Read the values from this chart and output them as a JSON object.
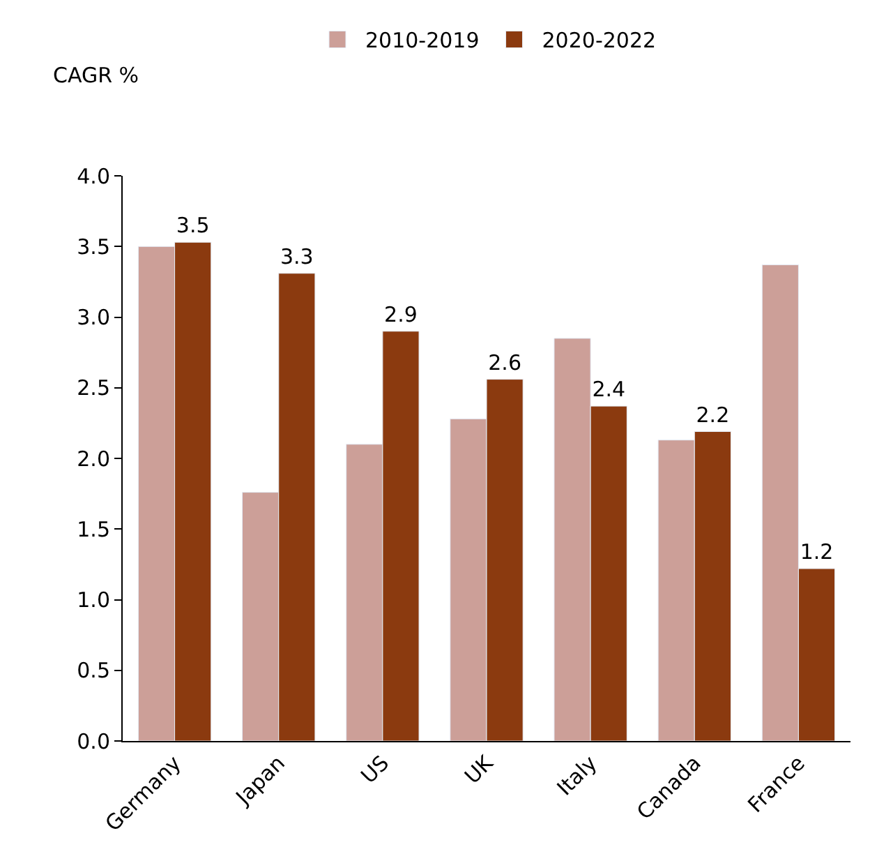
{
  "chart_data": {
    "type": "bar",
    "ylabel": "CAGR %",
    "categories": [
      "Germany",
      "Japan",
      "US",
      "UK",
      "Italy",
      "Canada",
      "France"
    ],
    "series": [
      {
        "name": "2010-2019",
        "color": "#cc9f98",
        "values": [
          3.5,
          1.76,
          2.1,
          2.28,
          2.85,
          2.13,
          3.37
        ]
      },
      {
        "name": "2020-2022",
        "color": "#8b3a0f",
        "values": [
          3.53,
          3.31,
          2.9,
          2.56,
          2.37,
          2.19,
          1.22
        ],
        "value_labels": [
          "3.5",
          "3.3",
          "2.9",
          "2.6",
          "2.4",
          "2.2",
          "1.2"
        ]
      }
    ],
    "ylim": [
      0,
      4.0
    ],
    "yticks": [
      {
        "value": 0,
        "label": "0.0"
      },
      {
        "value": 0.5,
        "label": "0.5"
      },
      {
        "value": 1.0,
        "label": "1.0"
      },
      {
        "value": 1.5,
        "label": "1.5"
      },
      {
        "value": 2.0,
        "label": "2.0"
      },
      {
        "value": 2.5,
        "label": "2.5"
      },
      {
        "value": 3.0,
        "label": "3.0"
      },
      {
        "value": 3.5,
        "label": "3.5"
      },
      {
        "value": 4.0,
        "label": "4.0"
      }
    ],
    "legend": "top"
  }
}
